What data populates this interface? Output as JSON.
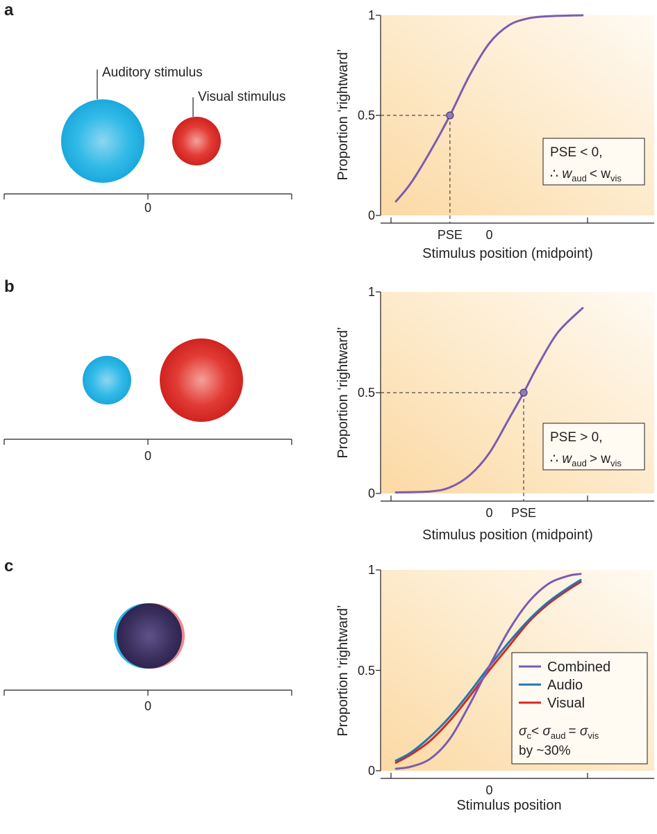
{
  "panels": [
    {
      "letter": "a",
      "stimulus_labels": {
        "auditory": "Auditory stimulus",
        "visual": "Visual stimulus"
      },
      "midline_label": "0"
    },
    {
      "letter": "b",
      "midline_label": "0"
    },
    {
      "letter": "c",
      "midline_label": "0"
    }
  ],
  "colors": {
    "combined": "#7b5cb0",
    "audio": "#1f77b4",
    "visual": "#d7261e",
    "auditory_sphere": "#29b6e6",
    "visual_sphere": "#e02b28",
    "fused_sphere": "#3a2d5c",
    "background_warm": "#fde5bd"
  },
  "icons": [
    "auditory-sphere-icon",
    "visual-sphere-icon",
    "fused-sphere-icon"
  ],
  "chart_data": [
    {
      "type": "line",
      "panel": "a",
      "ylabel": "Proportion ‘rightward’",
      "xlabel": "Stimulus position (midpoint)",
      "y_ticks": [
        0,
        0.5,
        1
      ],
      "y_tick_labels": [
        "0",
        "0.5",
        "1"
      ],
      "ylim": [
        0,
        1
      ],
      "x_ticks": [
        -1,
        1
      ],
      "x_tick_labels": [
        {
          "x": -0.4,
          "label": "PSE"
        },
        {
          "x": 0,
          "label": "0"
        }
      ],
      "xlim": [
        -1,
        1
      ],
      "series": [
        {
          "x": [
            -0.95,
            -0.8,
            -0.6,
            -0.4,
            -0.2,
            0,
            0.2,
            0.4,
            0.6,
            0.95
          ],
          "y": [
            0.07,
            0.16,
            0.32,
            0.5,
            0.7,
            0.86,
            0.95,
            0.985,
            0.995,
            1.0
          ]
        }
      ],
      "pse": {
        "x": -0.4,
        "y": 0.5
      },
      "annotation": {
        "line1": "PSE < 0,",
        "therefore": "∴",
        "w": "w",
        "aud": "aud",
        "rel": "<",
        "vis": "vis"
      }
    },
    {
      "type": "line",
      "panel": "b",
      "ylabel": "Proportion ‘rightward’",
      "xlabel": "Stimulus position (midpoint)",
      "y_ticks": [
        0,
        0.5,
        1
      ],
      "y_tick_labels": [
        "0",
        "0.5",
        "1"
      ],
      "ylim": [
        0,
        1
      ],
      "x_ticks": [
        -1,
        1
      ],
      "x_tick_labels": [
        {
          "x": 0,
          "label": "0"
        },
        {
          "x": 0.35,
          "label": "PSE"
        }
      ],
      "xlim": [
        -1,
        1
      ],
      "series": [
        {
          "x": [
            -0.95,
            -0.6,
            -0.4,
            -0.2,
            0,
            0.2,
            0.35,
            0.5,
            0.7,
            0.95
          ],
          "y": [
            0.005,
            0.01,
            0.03,
            0.09,
            0.2,
            0.37,
            0.5,
            0.64,
            0.8,
            0.92
          ]
        }
      ],
      "pse": {
        "x": 0.35,
        "y": 0.5
      },
      "annotation": {
        "line1": "PSE > 0,",
        "therefore": "∴",
        "w": "w",
        "aud": "aud",
        "rel": ">",
        "vis": "vis"
      }
    },
    {
      "type": "line",
      "panel": "c",
      "ylabel": "Proportion ‘rightward’",
      "xlabel": "Stimulus position",
      "y_ticks": [
        0,
        0.5,
        1
      ],
      "y_tick_labels": [
        "0",
        "0.5",
        "1"
      ],
      "ylim": [
        0,
        1
      ],
      "x_ticks": [
        -1,
        1
      ],
      "x_tick_labels": [
        {
          "x": 0,
          "label": "0"
        }
      ],
      "xlim": [
        -1,
        1
      ],
      "series": [
        {
          "name": "Combined",
          "color_key": "combined",
          "x": [
            -0.95,
            -0.8,
            -0.6,
            -0.4,
            -0.2,
            0,
            0.2,
            0.4,
            0.6,
            0.8,
            0.93
          ],
          "y": [
            0.01,
            0.02,
            0.06,
            0.16,
            0.33,
            0.52,
            0.7,
            0.84,
            0.93,
            0.97,
            0.98
          ]
        },
        {
          "name": "Audio",
          "color_key": "audio",
          "x": [
            -0.95,
            -0.8,
            -0.6,
            -0.4,
            -0.2,
            0,
            0.2,
            0.4,
            0.6,
            0.8,
            0.93
          ],
          "y": [
            0.05,
            0.09,
            0.17,
            0.27,
            0.39,
            0.52,
            0.64,
            0.75,
            0.84,
            0.91,
            0.95
          ]
        },
        {
          "name": "Visual",
          "color_key": "visual",
          "x": [
            -0.95,
            -0.8,
            -0.6,
            -0.4,
            -0.2,
            0,
            0.2,
            0.4,
            0.6,
            0.8,
            0.93
          ],
          "y": [
            0.04,
            0.08,
            0.15,
            0.25,
            0.37,
            0.5,
            0.62,
            0.74,
            0.83,
            0.9,
            0.94
          ]
        }
      ],
      "annotation": {
        "sigma": "σ",
        "c": "c",
        "lt": "<",
        "aud": "aud",
        "eq": "=",
        "vis": "vis",
        "line2": "by ~30%"
      }
    }
  ]
}
